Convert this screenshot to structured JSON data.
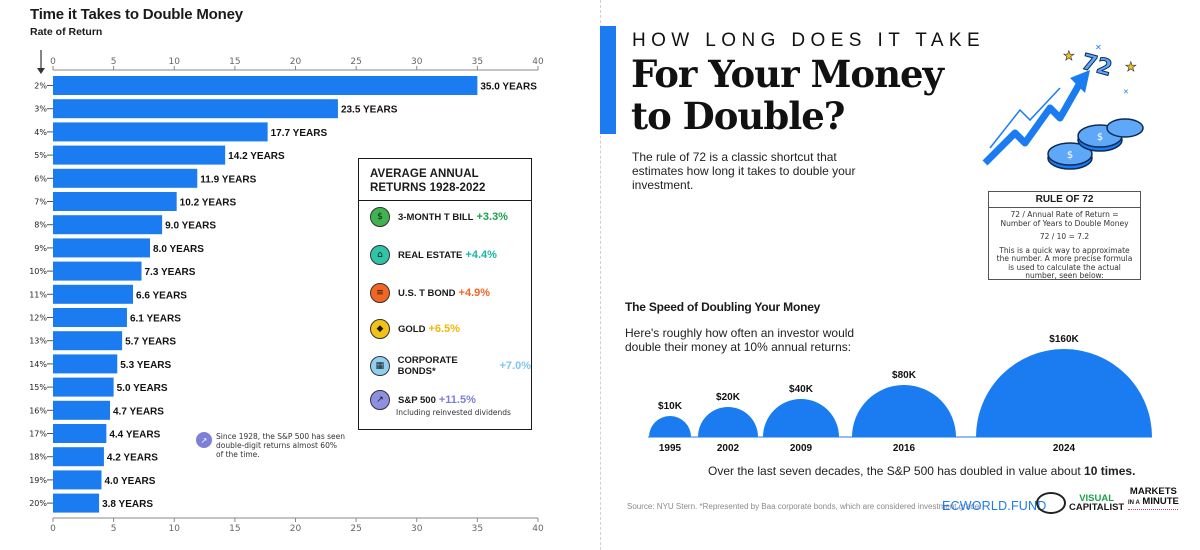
{
  "chart_data": {
    "type": "bar",
    "orientation": "horizontal",
    "title": "Time it Takes to Double Money",
    "ylabel": "Rate of Return",
    "categories": [
      "2%",
      "3%",
      "4%",
      "5%",
      "6%",
      "7%",
      "8%",
      "9%",
      "10%",
      "11%",
      "12%",
      "13%",
      "14%",
      "15%",
      "16%",
      "17%",
      "18%",
      "19%",
      "20%"
    ],
    "values": [
      35.0,
      23.5,
      17.7,
      14.2,
      11.9,
      10.2,
      9.0,
      8.0,
      7.3,
      6.6,
      6.1,
      5.7,
      5.3,
      5.0,
      4.7,
      4.4,
      4.2,
      4.0,
      3.8
    ],
    "value_labels": [
      "35.0 YEARS",
      "23.5 YEARS",
      "17.7 YEARS",
      "14.2 YEARS",
      "11.9 YEARS",
      "10.2 YEARS",
      "9.0 YEARS",
      "8.0 YEARS",
      "7.3 YEARS",
      "6.6 YEARS",
      "6.1 YEARS",
      "5.7 YEARS",
      "5.3 YEARS",
      "5.0 YEARS",
      "4.7 YEARS",
      "4.4 YEARS",
      "4.2 YEARS",
      "4.0 YEARS",
      "3.8 YEARS"
    ],
    "xlim": [
      0,
      40
    ],
    "x_ticks": [
      0,
      5,
      10,
      15,
      20,
      25,
      30,
      35,
      40
    ],
    "bar_color": "#1a7cf0",
    "grid": false
  },
  "average_returns": {
    "title_line1": "AVERAGE ANNUAL",
    "title_line2": "RETURNS 1928-2022",
    "items": [
      {
        "label": "3-MONTH T BILL",
        "value": "+3.3%",
        "color": "#1aa24b",
        "icon": "money-icon",
        "icon_bg": "#3fb34f"
      },
      {
        "label": "REAL ESTATE",
        "value": "+4.4%",
        "color": "#19b8a6",
        "icon": "house-icon",
        "icon_bg": "#2fc4a8"
      },
      {
        "label": "U.S. T BOND",
        "value": "+4.9%",
        "color": "#f26522",
        "icon": "bond-icon",
        "icon_bg": "#f26522"
      },
      {
        "label": "GOLD",
        "value": "+6.5%",
        "color": "#f2b705",
        "icon": "gold-icon",
        "icon_bg": "#f2c21a"
      },
      {
        "label": "CORPORATE BONDS*",
        "value": "+7.0%",
        "color": "#7fc6ee",
        "icon": "building-icon",
        "icon_bg": "#8fd0f2"
      },
      {
        "label": "S&P 500",
        "value": "+11.5%",
        "color": "#7d80d6",
        "icon": "chart-icon",
        "icon_bg": "#8d8fe0"
      }
    ],
    "note": "Including reinvested dividends"
  },
  "sp_note": "Since 1928, the S&P 500 has seen double-digit returns almost 60% of the time.",
  "right": {
    "kicker": "HOW LONG DOES IT TAKE",
    "headline_line1": "For Your Money",
    "headline_line2": "to Double?",
    "intro": "The rule of 72 is a classic shortcut that estimates how long it takes to double your investment.",
    "illustration_number": "72",
    "rule_box": {
      "title": "RULE OF 72",
      "formula_line1": "72 / Annual Rate of Return =",
      "formula_line2": "Number of Years to Double Money",
      "example": "72 / 10 = 7.2",
      "desc": "This is a quick way to approximate the number. A more precise formula is used to calculate the actual number, seen below:"
    },
    "speed_title": "The Speed of Doubling Your Money",
    "speed_sub": "Here's roughly how often an investor would double their money at 10% annual returns:",
    "summary_prefix": "Over the last seven decades, the S&P 500 has doubled in value about ",
    "summary_bold": "10 times.",
    "source": "Source: NYU Stern. *Represented by Baa corporate bonds, which are considered investment grade.",
    "brand_ecw": "ECWORLD.FUND",
    "brand_vc_1": "VISUAL",
    "brand_vc_2": "CAPITALIST",
    "brand_mim_1": "MARKETS",
    "brand_mim_2": "IN A",
    "brand_mim_3": "MINUTE"
  },
  "doubling_chart": {
    "type": "bubble",
    "years": [
      "1995",
      "2002",
      "2009",
      "2016",
      "2024"
    ],
    "values": [
      10,
      20,
      40,
      80,
      160
    ],
    "labels": [
      "$10K",
      "$20K",
      "$40K",
      "$80K",
      "$160K"
    ],
    "color": "#1a7cf0"
  }
}
